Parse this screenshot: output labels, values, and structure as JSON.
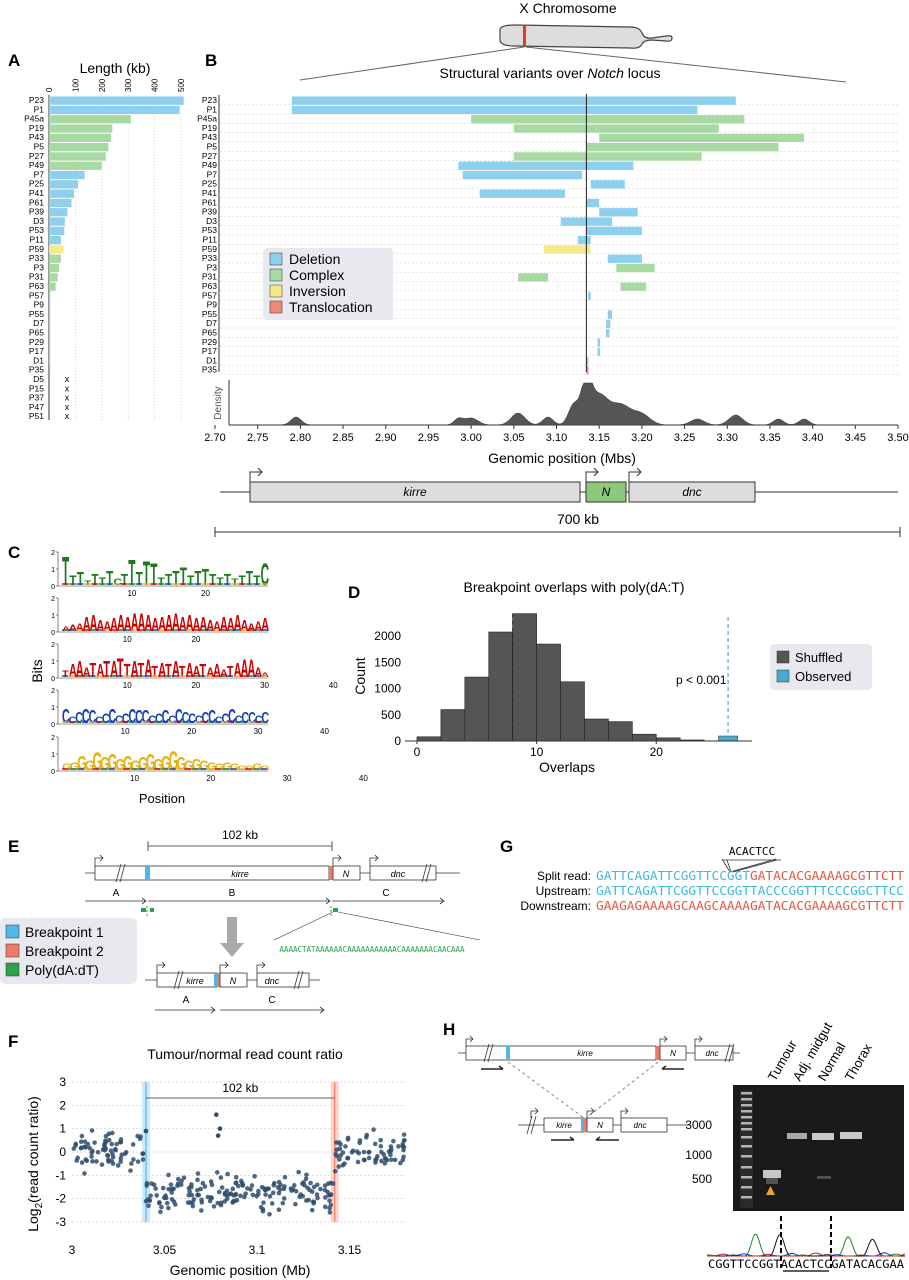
{
  "panels": {
    "A": "A",
    "B": "B",
    "C": "C",
    "D": "D",
    "E": "E",
    "F": "F",
    "G": "G",
    "H": "H"
  },
  "colors": {
    "deletion": "#8ecfee",
    "complex": "#a9d9a2",
    "inversion": "#f5e98a",
    "translocation": "#f08a78",
    "bp1": "#4fb8e8",
    "bp2": "#ef7a66",
    "polyA": "#2ca34a",
    "dark": "#555555",
    "observed": "#4da9c9"
  },
  "panelA": {
    "title": "Length (kb)",
    "ticks": [
      0,
      100,
      200,
      300,
      400,
      500
    ],
    "samples": [
      "P23",
      "P1",
      "P45a",
      "P19",
      "P43",
      "P5",
      "P27",
      "P49",
      "P7",
      "P25",
      "P41",
      "P61",
      "P39",
      "D3",
      "P53",
      "P11",
      "P59",
      "P33",
      "P3",
      "P31",
      "P63",
      "P57",
      "P9",
      "P55",
      "D7",
      "P65",
      "P29",
      "P17",
      "D1",
      "P35",
      "D5",
      "P15",
      "P37",
      "P47",
      "P51"
    ],
    "lengths": [
      510,
      495,
      310,
      240,
      235,
      225,
      215,
      200,
      135,
      110,
      95,
      85,
      70,
      60,
      58,
      45,
      55,
      45,
      38,
      33,
      25,
      4,
      3,
      3,
      2,
      2,
      2,
      1,
      1,
      1,
      0,
      0,
      0,
      0,
      0
    ],
    "types": [
      "deletion",
      "deletion",
      "complex",
      "complex",
      "complex",
      "complex",
      "complex",
      "complex",
      "deletion",
      "deletion",
      "deletion",
      "deletion",
      "deletion",
      "deletion",
      "deletion",
      "deletion",
      "inversion",
      "complex",
      "complex",
      "complex",
      "complex",
      "deletion",
      "deletion",
      "deletion",
      "deletion",
      "deletion",
      "deletion",
      "deletion",
      "deletion",
      "translocation",
      "none",
      "none",
      "none",
      "none",
      "none"
    ],
    "none_mark": "x"
  },
  "panelB": {
    "chrom_label": "X Chromosome",
    "title_prefix": "Structural variants over ",
    "title_em": "Notch",
    "title_suffix": " locus",
    "legend": [
      "Deletion",
      "Complex",
      "Inversion",
      "Translocation"
    ],
    "density_label": "Density",
    "xlabel": "Genomic position (Mbs)",
    "xticks": [
      "2.70",
      "2.75",
      "2.80",
      "2.85",
      "2.90",
      "2.95",
      "3.00",
      "3.05",
      "3.10",
      "3.15",
      "3.20",
      "3.25",
      "3.30",
      "3.35",
      "3.40",
      "3.45",
      "3.50"
    ],
    "notch_pos": 3.135,
    "variants": [
      {
        "row": 0,
        "start": 2.79,
        "end": 3.31,
        "type": "deletion"
      },
      {
        "row": 1,
        "start": 2.79,
        "end": 3.265,
        "type": "deletion"
      },
      {
        "row": 2,
        "start": 3.0,
        "end": 3.32,
        "type": "complex"
      },
      {
        "row": 3,
        "start": 3.05,
        "end": 3.29,
        "type": "complex"
      },
      {
        "row": 4,
        "start": 3.15,
        "end": 3.39,
        "type": "complex"
      },
      {
        "row": 5,
        "start": 3.135,
        "end": 3.36,
        "type": "complex"
      },
      {
        "row": 6,
        "start": 3.05,
        "end": 3.27,
        "type": "complex"
      },
      {
        "row": 7,
        "start": 2.985,
        "end": 3.19,
        "type": "deletion"
      },
      {
        "row": 8,
        "start": 2.99,
        "end": 3.13,
        "type": "deletion"
      },
      {
        "row": 9,
        "start": 3.14,
        "end": 3.18,
        "type": "deletion"
      },
      {
        "row": 10,
        "start": 3.01,
        "end": 3.11,
        "type": "deletion"
      },
      {
        "row": 11,
        "start": 3.135,
        "end": 3.15,
        "type": "deletion"
      },
      {
        "row": 12,
        "start": 3.15,
        "end": 3.195,
        "type": "deletion"
      },
      {
        "row": 13,
        "start": 3.105,
        "end": 3.165,
        "type": "deletion"
      },
      {
        "row": 14,
        "start": 3.135,
        "end": 3.2,
        "type": "deletion"
      },
      {
        "row": 15,
        "start": 3.125,
        "end": 3.14,
        "type": "deletion"
      },
      {
        "row": 16,
        "start": 3.085,
        "end": 3.14,
        "type": "inversion"
      },
      {
        "row": 17,
        "start": 3.16,
        "end": 3.2,
        "type": "deletion"
      },
      {
        "row": 18,
        "start": 3.17,
        "end": 3.215,
        "type": "complex"
      },
      {
        "row": 19,
        "start": 3.055,
        "end": 3.09,
        "type": "complex"
      },
      {
        "row": 20,
        "start": 3.175,
        "end": 3.205,
        "type": "complex"
      },
      {
        "row": 21,
        "start": 3.137,
        "end": 3.14,
        "type": "deletion"
      },
      {
        "row": 23,
        "start": 3.16,
        "end": 3.165,
        "type": "deletion"
      },
      {
        "row": 24,
        "start": 3.158,
        "end": 3.163,
        "type": "deletion"
      },
      {
        "row": 25,
        "start": 3.158,
        "end": 3.162,
        "type": "deletion"
      },
      {
        "row": 26,
        "start": 3.148,
        "end": 3.151,
        "type": "deletion"
      },
      {
        "row": 27,
        "start": 3.148,
        "end": 3.151,
        "type": "deletion"
      },
      {
        "row": 28,
        "start": 3.135,
        "end": 3.137,
        "type": "deletion"
      },
      {
        "row": 29,
        "start": 3.135,
        "end": 3.137,
        "type": "translocation"
      }
    ],
    "genes": [
      {
        "name": "kirre"
      },
      {
        "name": "N"
      },
      {
        "name": "dnc"
      }
    ],
    "scale_label": "700 kb"
  },
  "panelC": {
    "ylabel": "Bits",
    "xlabel": "Position",
    "motifs": [
      {
        "ticks": [
          "10",
          "20"
        ]
      },
      {
        "ticks": [
          "10",
          "20"
        ]
      },
      {
        "ticks": [
          "10",
          "20",
          "30",
          "40"
        ]
      },
      {
        "ticks": [
          "10",
          "20",
          "30",
          "40"
        ]
      },
      {
        "ticks": [
          "10",
          "20",
          "30",
          "40"
        ]
      }
    ],
    "yticks": [
      "2",
      "1",
      "0"
    ]
  },
  "panelD": {
    "chart_data": {
      "type": "bar",
      "title": "Breakpoint overlaps with poly(dA:T)",
      "xlabel": "Overlaps",
      "ylabel": "Count",
      "bins_x": [
        0,
        2,
        4,
        6,
        8,
        10,
        12,
        14,
        16,
        18,
        20,
        22
      ],
      "values": [
        80,
        600,
        1220,
        2080,
        2430,
        1850,
        1130,
        420,
        370,
        130,
        60,
        20
      ],
      "observed": 26,
      "mean": 8,
      "xticks": [
        "0",
        "10",
        "20"
      ],
      "yticks": [
        "0",
        "500",
        "1000",
        "1500",
        "2000"
      ],
      "ylim": [
        0,
        2500
      ],
      "xlim": [
        -1,
        28
      ],
      "legend": [
        "Shuffled",
        "Observed"
      ],
      "annotation": "p < 0.001"
    }
  },
  "panelE": {
    "dist_label": "102 kb",
    "genes": [
      "kirre",
      "N",
      "dnc"
    ],
    "segments": [
      "A",
      "B",
      "C"
    ],
    "legend": [
      "Breakpoint 1",
      "Breakpoint 2",
      "Poly(dA:dT)"
    ],
    "polyA_seq": "AAAACTATAAAAAACAAAAAAAAAAACAAAAAAACAACAAA",
    "result_genes": [
      "kirre",
      "N",
      "dnc"
    ],
    "result_segments": [
      "A",
      "C"
    ]
  },
  "panelF": {
    "chart_data": {
      "type": "scatter",
      "title": "Tumour/normal read count ratio",
      "xlabel": "Genomic position (Mb)",
      "ylabel": "Log2(read count ratio)",
      "xticks": [
        "3",
        "3.05",
        "3.1",
        "3.15"
      ],
      "yticks": [
        "3",
        "2",
        "1",
        "0",
        "-1",
        "-2",
        "-3"
      ],
      "xlim": [
        3.0,
        3.18
      ],
      "ylim": [
        -3,
        3
      ],
      "bp1": 3.04,
      "bp2": 3.142,
      "dist_label": "102 kb",
      "segments": [
        {
          "x_start": 3.0,
          "x_end": 3.04,
          "mean": 0.1
        },
        {
          "x_start": 3.04,
          "x_end": 3.142,
          "mean": -1.7
        },
        {
          "x_start": 3.142,
          "x_end": 3.18,
          "mean": 0.1
        }
      ],
      "outliers": [
        {
          "x": 3.078,
          "y": 1.6
        },
        {
          "x": 3.08,
          "y": 1.0
        },
        {
          "x": 3.079,
          "y": 0.7
        }
      ]
    },
    "ylabel_main": "Log",
    "ylabel_sub": "2",
    "ylabel_rest": "(read count ratio)"
  },
  "panelG": {
    "insert": "ACACTCC",
    "rows": [
      {
        "label": "Split read:",
        "parts": [
          {
            "t": "GATTCAGATTCGGTTCCGGT",
            "c": "blue"
          },
          {
            "t": "GATACACGAAAAGCGTTCTT",
            "c": "red"
          }
        ]
      },
      {
        "label": "Upstream:",
        "parts": [
          {
            "t": "GATTCAGATTCGGTTCCGGTTACCCGGTTTCCCGGCTTCC",
            "c": "blue"
          }
        ]
      },
      {
        "label": "Downstream:",
        "parts": [
          {
            "t": "GAAGAGAAAAGCAAGCAAAAGATACACGAAAAGCGTTCTT",
            "c": "red"
          }
        ]
      }
    ]
  },
  "panelH": {
    "genes": [
      "kirre",
      "N",
      "dnc"
    ],
    "lanes": [
      "Tumour",
      "Adj. midgut",
      "Normal",
      "Thorax"
    ],
    "ladder": [
      "3000",
      "1000",
      "500"
    ],
    "sequence": "CGGTTCCGGTACACTCCGATACACGAA"
  }
}
